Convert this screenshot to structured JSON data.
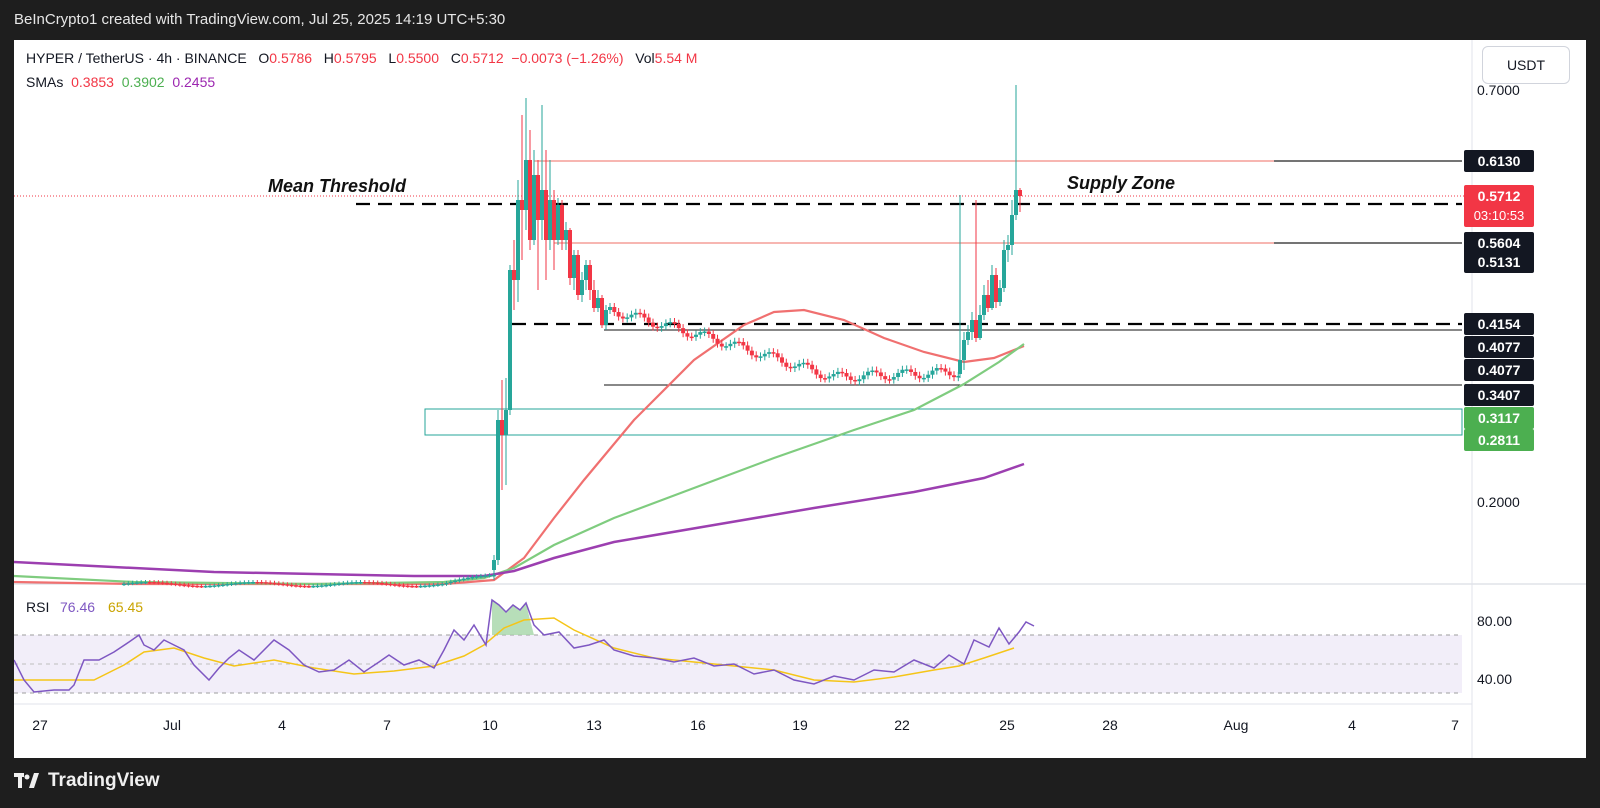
{
  "watermark": "BeInCrypto1 created with TradingView.com, Jul 25, 2025 14:19 UTC+5:30",
  "brand": "TradingView",
  "header": {
    "symbol": "HYPER / TetherUS · 4h · BINANCE",
    "o_label": "O",
    "o_value": "0.5786",
    "h_label": "H",
    "h_value": "0.5795",
    "l_label": "L",
    "l_value": "0.5500",
    "c_label": "C",
    "c_value": "0.5712",
    "change": "−0.0073 (−1.26%)",
    "vol_label": "Vol",
    "vol_value": "5.54 M",
    "sma_label": "SMAs",
    "sma_values": [
      "0.3853",
      "0.3902",
      "0.2455"
    ]
  },
  "currency": "USDT",
  "rsi": {
    "label": "RSI",
    "value1": "76.46",
    "value2": "65.45",
    "ticks": [
      "80.00",
      "40.00"
    ]
  },
  "colors": {
    "up": "#26a69a",
    "down": "#f23645",
    "sma_red": "#f07070",
    "sma_green": "#7fcc7f",
    "sma_purple": "#9c3fb0",
    "rsi_line": "#7e57c2",
    "rsi_signal": "#f5c518"
  },
  "annotations": {
    "mean_threshold": "Mean Threshold",
    "supply_zone": "Supply Zone",
    "countdown": "03:10:53"
  },
  "chart_data": {
    "type": "candlestick",
    "title": "HYPER / TetherUS · 4h · BINANCE",
    "x_ticks": [
      "27",
      "Jul",
      "4",
      "7",
      "10",
      "13",
      "16",
      "19",
      "22",
      "25",
      "28",
      "Aug",
      "4",
      "7"
    ],
    "y_ticks": [
      0.7,
      0.2
    ],
    "y_scale": "log",
    "price_labels": [
      {
        "value": "0.6130",
        "style": "black"
      },
      {
        "value": "0.5712",
        "style": "red"
      },
      {
        "value": "0.5604",
        "style": "black"
      },
      {
        "value": "0.5131",
        "style": "black"
      },
      {
        "value": "0.4154",
        "style": "black"
      },
      {
        "value": "0.4077",
        "style": "black"
      },
      {
        "value": "0.4077",
        "style": "black"
      },
      {
        "value": "0.3407",
        "style": "black"
      },
      {
        "value": "0.3117",
        "style": "green"
      },
      {
        "value": "0.2811",
        "style": "green"
      }
    ],
    "levels": {
      "supply_zone_top": 0.613,
      "supply_zone_bottom": 0.5131,
      "mean_threshold": 0.5604,
      "support_dashed": 0.4154,
      "support_1": 0.4077,
      "support_2": 0.3407,
      "demand_zone_top": 0.3117,
      "demand_zone_bottom": 0.2811
    },
    "ohlc_key_points": [
      {
        "date": "Jun 25",
        "price": 0.165
      },
      {
        "date": "Jul 9",
        "price": 0.168
      },
      {
        "date": "Jul 10",
        "price": 0.32
      },
      {
        "date": "Jul 11",
        "price": 0.66
      },
      {
        "date": "Jul 12",
        "price": 0.52
      },
      {
        "date": "Jul 15",
        "price": 0.43
      },
      {
        "date": "Jul 19",
        "price": 0.37
      },
      {
        "date": "Jul 22",
        "price": 0.375
      },
      {
        "date": "Jul 23",
        "price": 0.46
      },
      {
        "date": "Jul 25",
        "price": 0.5712
      }
    ],
    "rsi_ticks": [
      80,
      40
    ]
  }
}
